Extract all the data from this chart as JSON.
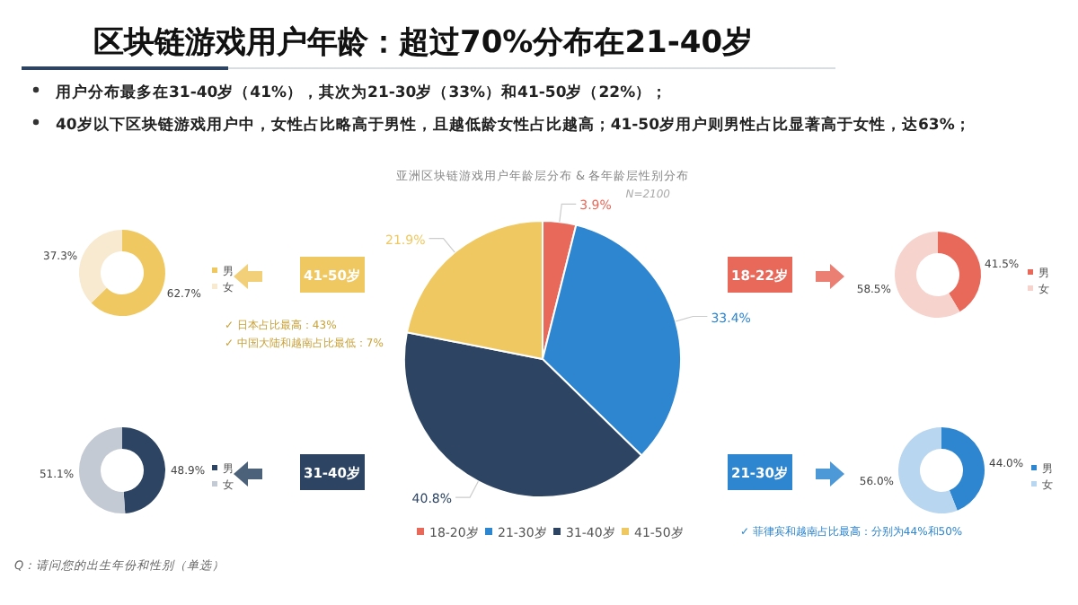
{
  "chart_data": [
    {
      "type": "other",
      "title": "区块链游戏用户年龄：超过70%分布在21-40岁",
      "annotations": [
        "用户分布最多在31-40岁（41%），其次为21-30岁（33%）和41-50岁（22%）；",
        "40岁以下区块链游戏用户中，女性占比略高于男性，且越低龄女性占比越高；41-50岁用户则男性占比显著高于女性，达63%；",
        "Q：请问您的出生年份和性别（单选）"
      ]
    },
    {
      "type": "pie",
      "title": "亚洲区块链游戏用户年龄层分布 & 各年龄层性别分布",
      "subtitle": "N=2100",
      "categories": [
        "18-20岁",
        "21-30岁",
        "31-40岁",
        "41-50岁"
      ],
      "values": [
        3.9,
        33.4,
        40.8,
        21.9
      ],
      "value_labels": [
        "3.9%",
        "33.4%",
        "40.8%",
        "21.9%"
      ],
      "colors": [
        "#e8695a",
        "#2e86d0",
        "#2d4563",
        "#f0c862"
      ],
      "legend": "bottom"
    },
    {
      "type": "donut",
      "title": "41-50岁",
      "categories": [
        "男",
        "女"
      ],
      "values": [
        62.7,
        37.3
      ],
      "value_labels": [
        "62.7%",
        "37.3%"
      ],
      "colors": [
        "#f0c862",
        "#f8ead0"
      ],
      "legend": "right",
      "annotations": [
        "✓ 日本占比最高：43%",
        "✓ 中国大陆和越南占比最低：7%"
      ]
    },
    {
      "type": "donut",
      "title": "31-40岁",
      "categories": [
        "男",
        "女"
      ],
      "values": [
        48.9,
        51.1
      ],
      "value_labels": [
        "48.9%",
        "51.1%"
      ],
      "colors": [
        "#2d4563",
        "#c3cad3"
      ],
      "legend": "right"
    },
    {
      "type": "donut",
      "title": "18-22岁",
      "categories": [
        "男",
        "女"
      ],
      "values": [
        41.5,
        58.5
      ],
      "value_labels": [
        "41.5%",
        "58.5%"
      ],
      "colors": [
        "#e8695a",
        "#f6d3cc"
      ],
      "legend": "right"
    },
    {
      "type": "donut",
      "title": "21-30岁",
      "categories": [
        "男",
        "女"
      ],
      "values": [
        44.0,
        56.0
      ],
      "value_labels": [
        "44.0%",
        "56.0%"
      ],
      "colors": [
        "#2e86d0",
        "#b8d6ef"
      ],
      "legend": "right",
      "annotations": [
        "✓ 菲律宾和越南占比最高：分别为44%和50%"
      ]
    }
  ]
}
